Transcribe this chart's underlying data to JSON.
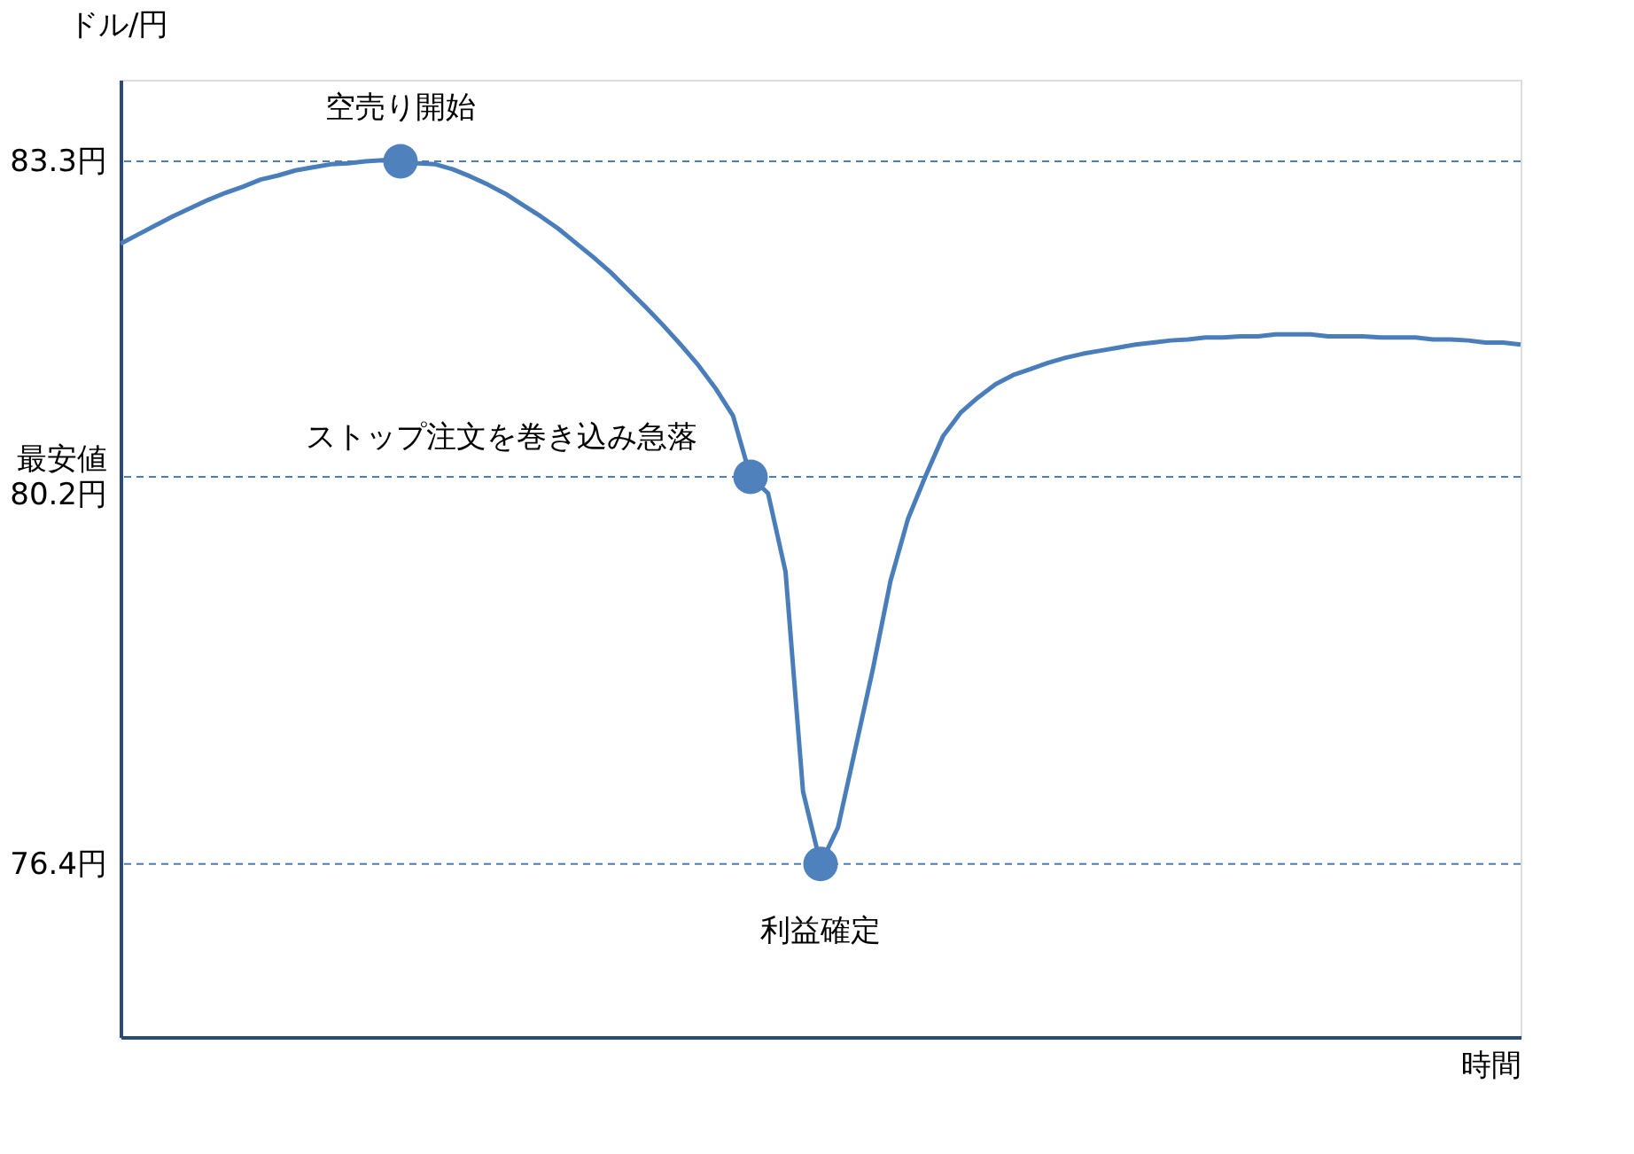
{
  "chart_data": {
    "type": "line",
    "xlabel": "時間",
    "ylabel": "ドル/円",
    "categories": [
      null,
      null,
      null,
      null,
      null,
      null,
      null,
      null,
      null,
      null,
      null,
      null,
      null,
      null,
      null,
      null,
      null,
      null,
      null,
      null,
      null,
      null,
      null,
      null,
      null,
      null,
      null,
      null,
      null,
      null,
      null,
      null,
      null,
      null,
      null,
      null,
      null,
      null,
      null,
      null,
      null,
      null,
      null,
      null,
      null,
      null,
      null,
      null,
      null,
      null,
      null,
      null,
      null,
      null,
      null,
      null,
      null,
      null,
      null,
      null,
      null,
      null,
      null,
      null,
      null,
      null,
      null,
      null,
      null,
      null,
      null,
      null,
      null,
      null,
      null,
      null,
      null,
      null,
      null,
      null,
      null
    ],
    "ylim": [
      74.7,
      84.1
    ],
    "yticks": [
      {
        "value": 83.3,
        "label": "83.3円"
      },
      {
        "value": 80.2,
        "label": "最安値\n80.2円"
      },
      {
        "value": 76.4,
        "label": "76.4円"
      }
    ],
    "tick_labels": "y",
    "grid": false,
    "series": [
      {
        "color": "#4a7ebb",
        "marker": "none",
        "line_style": "solid",
        "values": [
          82.49,
          82.58,
          82.67,
          82.76,
          82.84,
          82.92,
          82.99,
          83.05,
          83.12,
          83.16,
          83.21,
          83.24,
          83.27,
          83.28,
          83.3,
          83.31,
          83.3,
          83.28,
          83.27,
          83.22,
          83.15,
          83.07,
          82.98,
          82.87,
          82.76,
          82.64,
          82.5,
          82.36,
          82.21,
          82.04,
          81.87,
          81.69,
          81.5,
          81.3,
          81.07,
          80.8,
          80.2,
          80.04,
          79.27,
          77.11,
          76.4,
          76.76,
          77.54,
          78.32,
          79.18,
          79.79,
          80.21,
          80.6,
          80.83,
          80.98,
          81.11,
          81.2,
          81.26,
          81.32,
          81.37,
          81.41,
          81.44,
          81.47,
          81.5,
          81.52,
          81.54,
          81.55,
          81.57,
          81.57,
          81.58,
          81.58,
          81.6,
          81.6,
          81.6,
          81.58,
          81.58,
          81.58,
          81.57,
          81.57,
          81.57,
          81.55,
          81.55,
          81.54,
          81.52,
          81.52,
          81.5
        ]
      },
      {
        "type": "scatter",
        "color": "#4f81bd",
        "marker": "circle",
        "values": [
          null,
          null,
          null,
          null,
          null,
          null,
          null,
          null,
          null,
          null,
          null,
          null,
          null,
          null,
          null,
          null,
          83.3,
          null,
          null,
          null,
          null,
          null,
          null,
          null,
          null,
          null,
          null,
          null,
          null,
          null,
          null,
          null,
          null,
          null,
          null,
          null,
          80.2,
          null,
          null,
          null,
          76.4,
          null,
          null,
          null,
          null,
          null,
          null,
          null,
          null,
          null,
          null,
          null,
          null,
          null,
          null,
          null,
          null,
          null,
          null,
          null,
          null,
          null,
          null,
          null,
          null,
          null,
          null,
          null,
          null,
          null,
          null,
          null,
          null,
          null,
          null,
          null,
          null,
          null,
          null,
          null,
          null
        ]
      }
    ],
    "ref_lines": [
      {
        "axis": "y",
        "value": 83.3,
        "color": "#4a7ebb",
        "line_style": "dashed"
      },
      {
        "axis": "y",
        "value": 80.2,
        "color": "#4a7ebb",
        "line_style": "dashed"
      },
      {
        "axis": "y",
        "value": 76.4,
        "color": "#4a7ebb",
        "line_style": "dashed"
      }
    ],
    "annotations": [
      "空売り開始",
      "ストップ注文を巻き込み急落",
      "利益確定"
    ]
  }
}
